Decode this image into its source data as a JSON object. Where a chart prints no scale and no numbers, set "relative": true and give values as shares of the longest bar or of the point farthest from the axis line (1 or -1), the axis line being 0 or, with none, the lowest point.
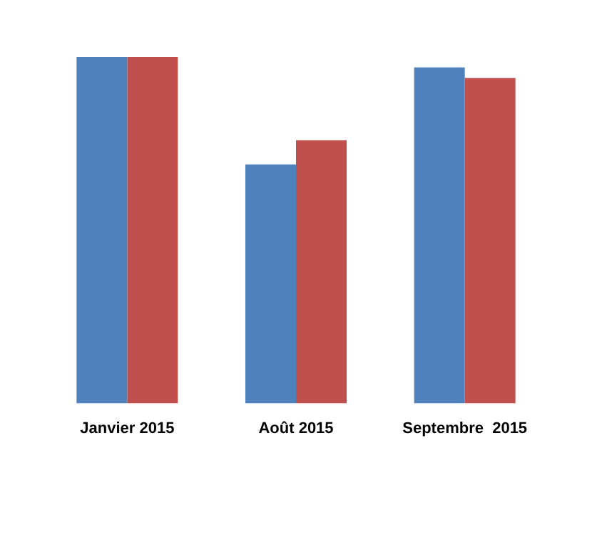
{
  "chart_data": {
    "type": "bar",
    "relative": true,
    "categories": [
      "Janvier 2015",
      "Août 2015",
      "Septembre  2015"
    ],
    "series": [
      {
        "color": "#4f81bd",
        "values": [
          1,
          0.69,
          0.97
        ]
      },
      {
        "color": "#c0504d",
        "values": [
          1,
          0.76,
          0.94
        ]
      }
    ],
    "grid": false,
    "legend": false
  }
}
